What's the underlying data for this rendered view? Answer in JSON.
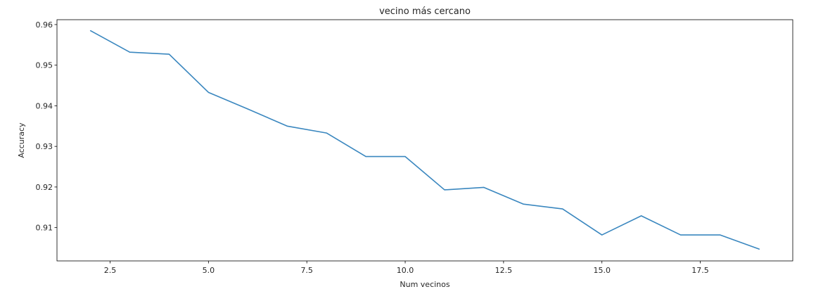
{
  "chart_data": {
    "type": "line",
    "title": "vecino más cercano",
    "xlabel": "Num vecinos",
    "ylabel": "Accuracy",
    "xlim": [
      1.15,
      19.85
    ],
    "ylim": [
      0.9018,
      0.9612
    ],
    "x_ticks": [
      2.5,
      5.0,
      7.5,
      10.0,
      12.5,
      15.0,
      17.5
    ],
    "x_tick_labels": [
      "2.5",
      "5.0",
      "7.5",
      "10.0",
      "12.5",
      "15.0",
      "17.5"
    ],
    "y_ticks": [
      0.91,
      0.92,
      0.93,
      0.94,
      0.95,
      0.96
    ],
    "y_tick_labels": [
      "0.91",
      "0.92",
      "0.93",
      "0.94",
      "0.95",
      "0.96"
    ],
    "grid": false,
    "line_color": "#3a87bf",
    "series": [
      {
        "x": [
          2,
          3,
          4,
          5,
          6,
          7,
          8,
          9,
          10,
          11,
          12,
          13,
          14,
          15,
          16,
          17,
          18,
          19
        ],
        "values": [
          0.9585,
          0.9532,
          0.9527,
          0.9433,
          0.9392,
          0.935,
          0.9333,
          0.9275,
          0.9275,
          0.9193,
          0.9199,
          0.9158,
          0.9146,
          0.9082,
          0.9129,
          0.9082,
          0.9082,
          0.9047
        ]
      }
    ]
  }
}
